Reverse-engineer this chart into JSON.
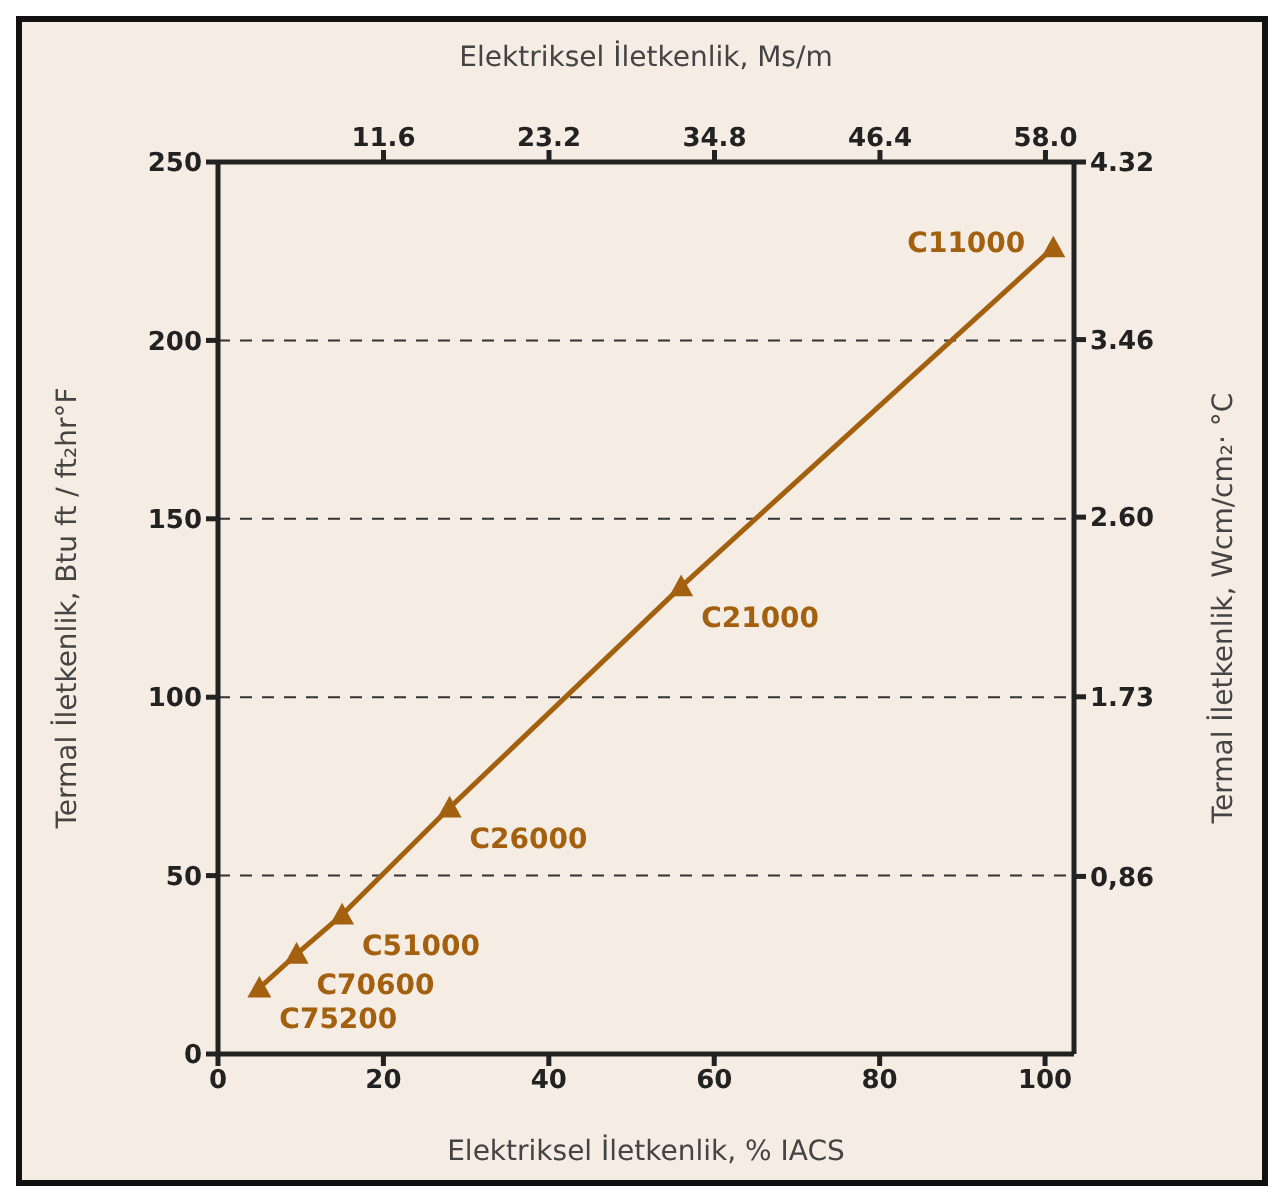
{
  "chart_data": {
    "type": "line",
    "xlabel": "Elektriksel İletkenlik, % IACS",
    "x2label": "Elektriksel İletkenlik, Ms/m",
    "ylabel": "Termal İletkenlik, Btu ft / ft₂hr°F",
    "y2label": "Termal İletkenlik, Wcm/cm₂· °C",
    "x": [
      5,
      9.5,
      15,
      28,
      56,
      101
    ],
    "series": [
      {
        "color": "#a3600f",
        "values": [
          18.5,
          28,
          39,
          69,
          131,
          226
        ]
      }
    ],
    "marker": "triangle",
    "line_style": "solid",
    "grid": "y",
    "xlim": [
      0,
      103.5
    ],
    "xticks": [
      0,
      20,
      40,
      60,
      80,
      100
    ],
    "x2lim": [
      0,
      60
    ],
    "x2ticks": [
      11.6,
      23.2,
      34.8,
      46.4,
      {
        "value": 58,
        "label": "58.0"
      }
    ],
    "ylim": [
      0,
      250
    ],
    "yticks": [
      0,
      50,
      100,
      150,
      200,
      250
    ],
    "y2lim": [
      0,
      4.32
    ],
    "y2ticks": [
      {
        "value": 0.86,
        "label": "0,86"
      },
      1.73,
      {
        "value": 2.6,
        "label": "2.60"
      },
      3.46,
      4.32
    ],
    "annotations": [
      {
        "text": "C75200",
        "x": 5,
        "y": 18.5
      },
      {
        "text": "C70600",
        "x": 9.5,
        "y": 28
      },
      {
        "text": "C51000",
        "x": 15,
        "y": 39
      },
      {
        "text": "C26000",
        "x": 28,
        "y": 69
      },
      {
        "text": "C21000",
        "x": 56,
        "y": 131
      },
      {
        "text": "C11000",
        "x": 101,
        "y": 226
      }
    ]
  }
}
